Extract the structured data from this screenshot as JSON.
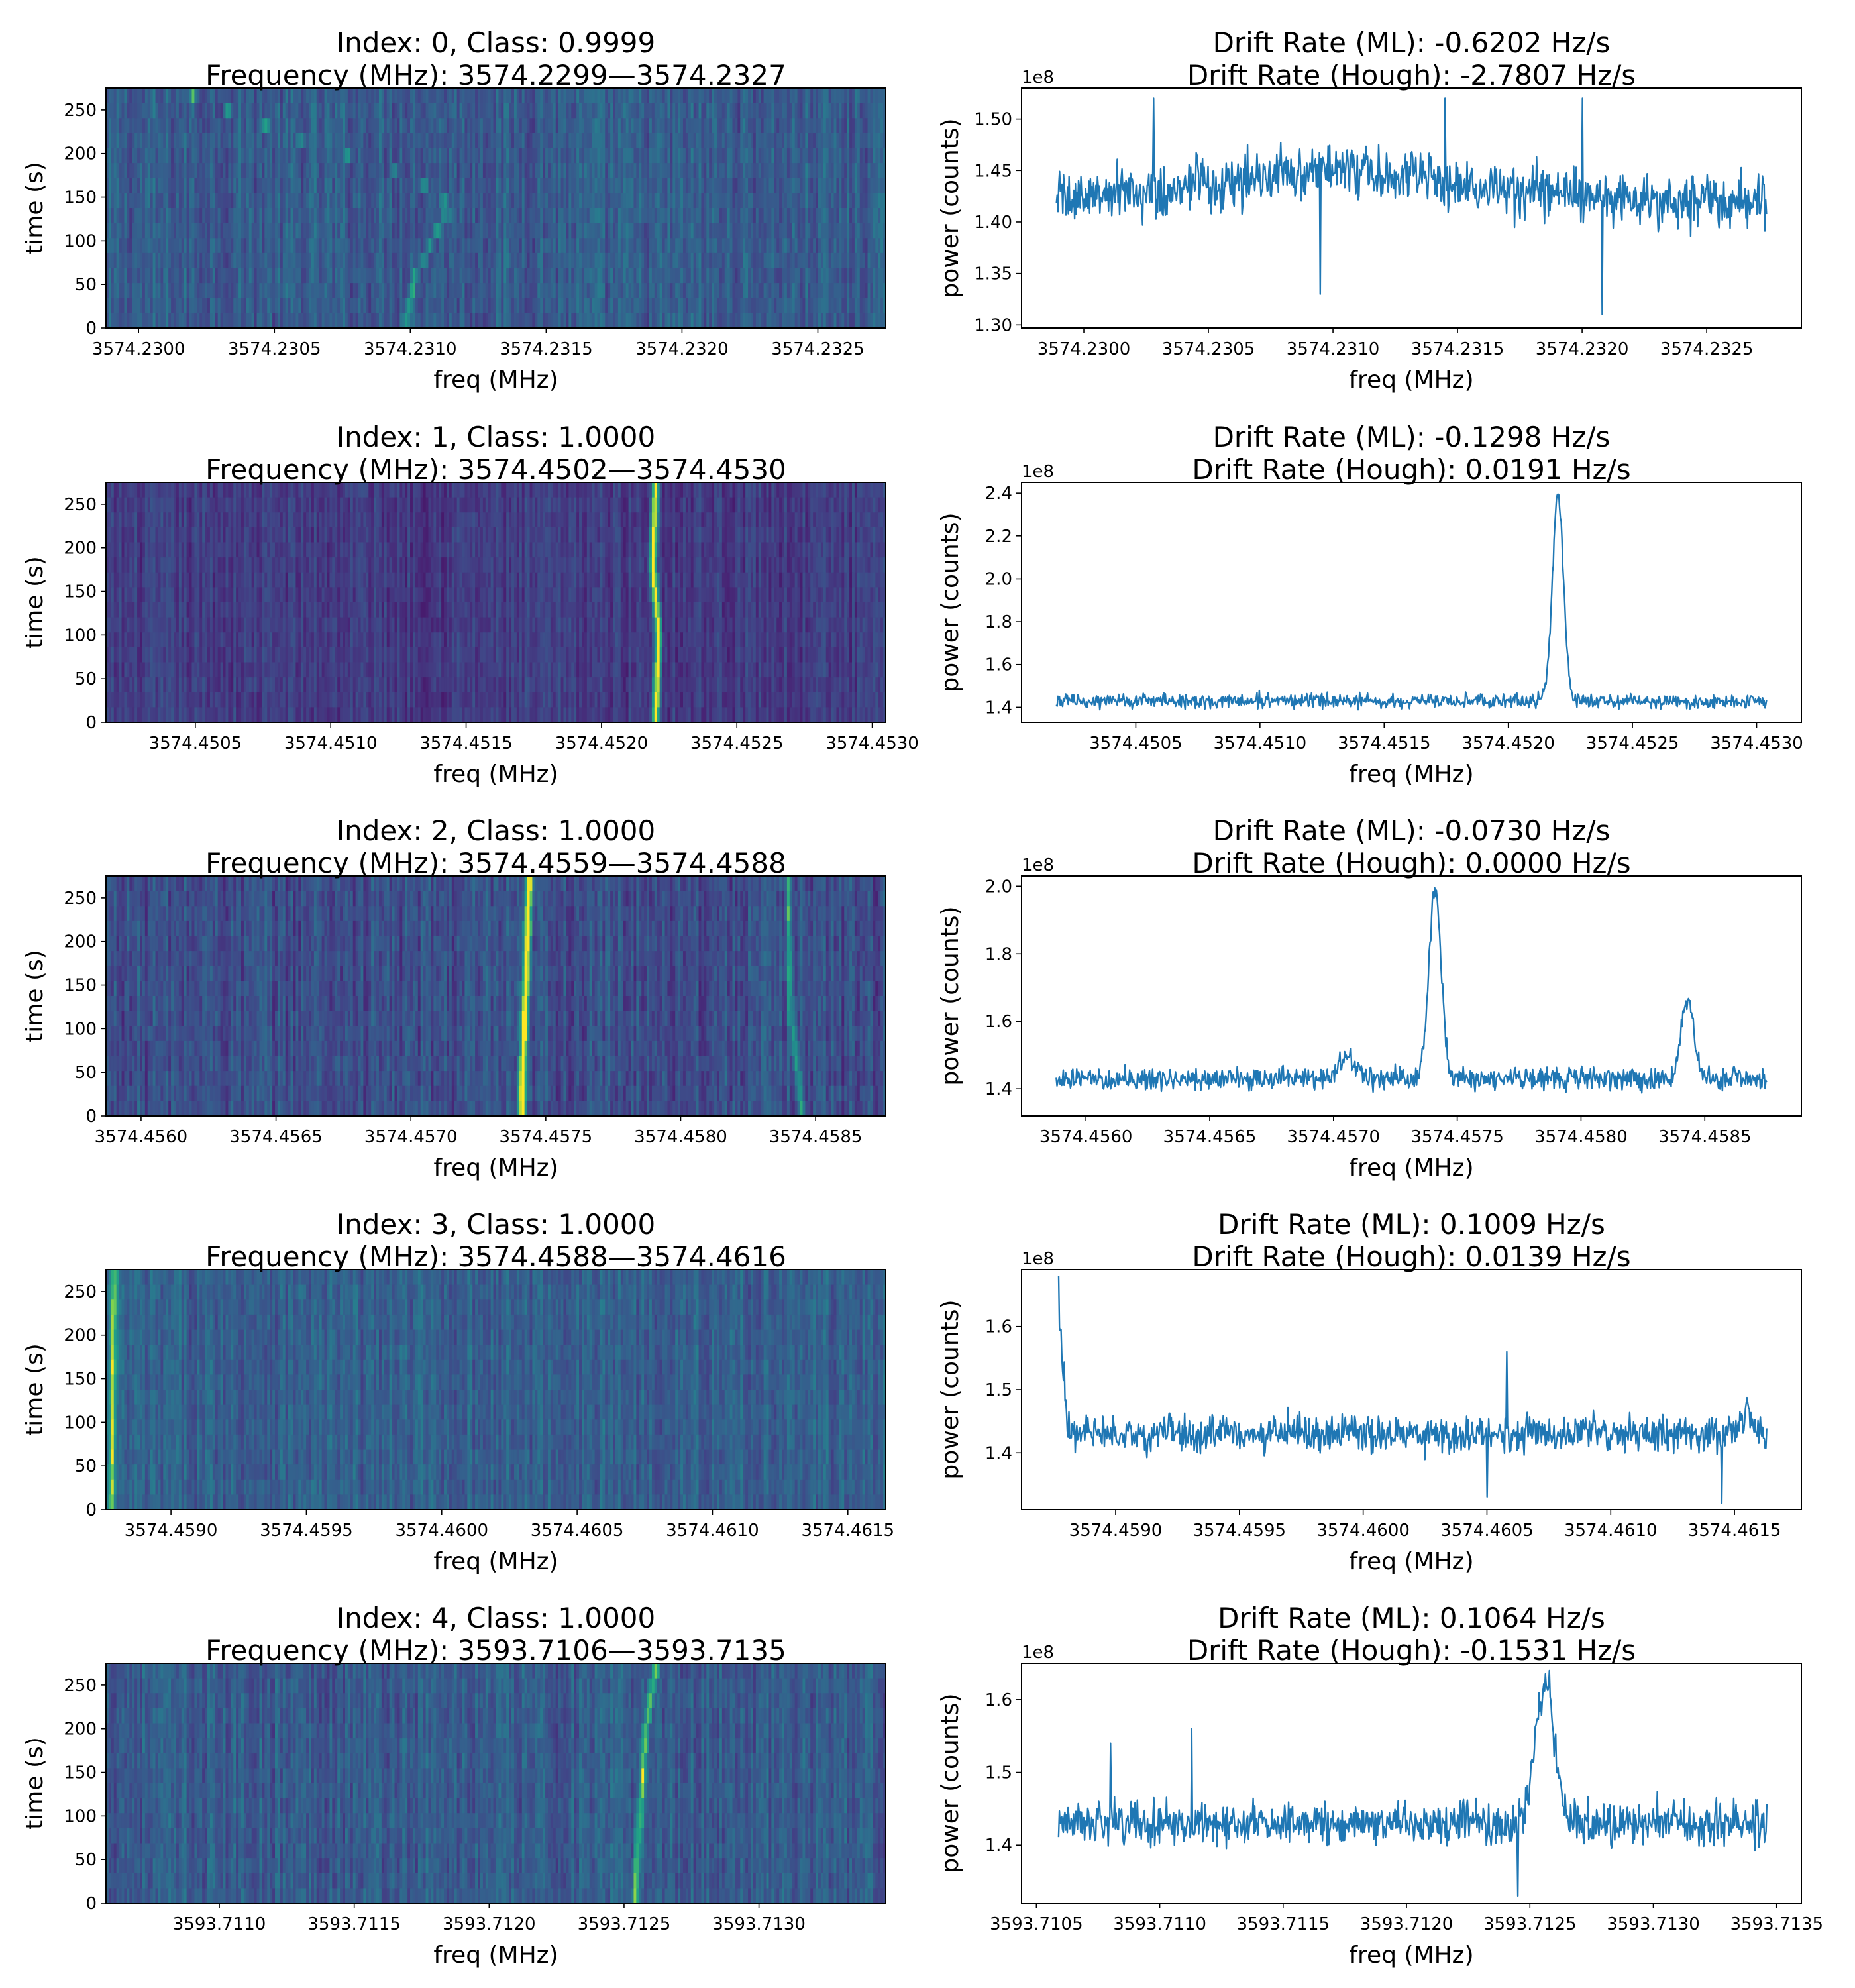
{
  "figure": {
    "line_color": "#1f77b4",
    "colormap": "viridis",
    "panels": [
      {
        "index": 0,
        "waterfall": {
          "title_line1": "Index: 0, Class: 0.9999",
          "title_line2": "Frequency (MHz): 3574.2299—3574.2327",
          "xlabel": "freq (MHz)",
          "ylabel": "time (s)",
          "x_range": [
            3574.22988,
            3574.23275
          ],
          "xticks": [
            "3574.2300",
            "3574.2305",
            "3574.2310",
            "3574.2315",
            "3574.2320",
            "3574.2325"
          ],
          "y_range": [
            0,
            275
          ],
          "yticks": [
            "0",
            "50",
            "100",
            "150",
            "200",
            "250"
          ],
          "style": "base-green",
          "signal_path": [
            [
              3574.23098,
              0
            ],
            [
              3574.23102,
              60
            ],
            [
              3574.23108,
              100
            ],
            [
              3574.23115,
              140
            ],
            [
              3574.231,
              175
            ],
            [
              3574.2306,
              215
            ],
            [
              3574.2302,
              265
            ]
          ],
          "signal_strength": 0.35
        },
        "spectrum": {
          "title_line1": "Drift Rate (ML): -0.6202 Hz/s",
          "title_line2": "Drift Rate (Hough): -2.7807 Hz/s",
          "xlabel": "freq (MHz)",
          "ylabel": "power (counts)",
          "offset_label": "1e8",
          "x_range": [
            3574.22975,
            3574.23288
          ],
          "xticks": [
            "3574.2300",
            "3574.2305",
            "3574.2310",
            "3574.2315",
            "3574.2320",
            "3574.2325"
          ],
          "y_range": [
            1.297,
            1.53
          ],
          "yticks": [
            "1.30",
            "1.35",
            "1.40",
            "1.45",
            "1.50"
          ],
          "baseline": 1.42,
          "noise": 0.035,
          "peaks": [
            [
              3574.23101,
              0.03,
              0.0005
            ]
          ],
          "extremes": [
            [
              3574.232,
              1.52
            ],
            [
              3574.23208,
              1.31
            ],
            [
              3574.23145,
              1.52
            ],
            [
              3574.23095,
              1.33
            ],
            [
              3574.23028,
              1.52
            ]
          ]
        }
      },
      {
        "index": 1,
        "waterfall": {
          "title_line1": "Index: 1, Class: 1.0000",
          "title_line2": "Frequency (MHz): 3574.4502—3574.4530",
          "xlabel": "freq (MHz)",
          "ylabel": "time (s)",
          "x_range": [
            3574.45017,
            3574.45305
          ],
          "xticks": [
            "3574.4505",
            "3574.4510",
            "3574.4515",
            "3574.4520",
            "3574.4525",
            "3574.4530"
          ],
          "y_range": [
            0,
            275
          ],
          "yticks": [
            "0",
            "50",
            "100",
            "150",
            "200",
            "250"
          ],
          "style": "base-dark",
          "signal_path": [
            [
              3574.4522,
              0
            ],
            [
              3574.45221,
              100
            ],
            [
              3574.45219,
              180
            ],
            [
              3574.4522,
              275
            ]
          ],
          "signal_strength": 0.95
        },
        "spectrum": {
          "title_line1": "Drift Rate (ML): -0.1298 Hz/s",
          "title_line2": "Drift Rate (Hough): 0.0191 Hz/s",
          "xlabel": "freq (MHz)",
          "ylabel": "power (counts)",
          "offset_label": "1e8",
          "x_range": [
            3574.45004,
            3574.45318
          ],
          "xticks": [
            "3574.4505",
            "3574.4510",
            "3574.4515",
            "3574.4520",
            "3574.4525",
            "3574.4530"
          ],
          "y_range": [
            1.33,
            2.45
          ],
          "yticks": [
            "1.4",
            "1.6",
            "1.8",
            "2.0",
            "2.2",
            "2.4"
          ],
          "baseline": 1.43,
          "noise": 0.045,
          "peaks": [
            [
              3574.4522,
              0.97,
              2.2e-05
            ]
          ],
          "extremes": []
        }
      },
      {
        "index": 2,
        "waterfall": {
          "title_line1": "Index: 2, Class: 1.0000",
          "title_line2": "Frequency (MHz): 3574.4559—3574.4588",
          "xlabel": "freq (MHz)",
          "ylabel": "time (s)",
          "x_range": [
            3574.45587,
            3574.45876
          ],
          "xticks": [
            "3574.4560",
            "3574.4565",
            "3574.4570",
            "3574.4575",
            "3574.4580",
            "3574.4585"
          ],
          "y_range": [
            0,
            275
          ],
          "yticks": [
            "0",
            "50",
            "100",
            "150",
            "200",
            "250"
          ],
          "style": "base-mid",
          "signal_path": [
            [
              3574.45741,
              0
            ],
            [
              3574.45742,
              100
            ],
            [
              3574.45744,
              275
            ]
          ],
          "signal_strength": 0.85,
          "signal2_path": [
            [
              3574.45845,
              0
            ],
            [
              3574.45841,
              110
            ],
            [
              3574.4584,
              275
            ]
          ],
          "signal2_strength": 0.45
        },
        "spectrum": {
          "title_line1": "Drift Rate (ML): -0.0730 Hz/s",
          "title_line2": "Drift Rate (Hough): 0.0000 Hz/s",
          "xlabel": "freq (MHz)",
          "ylabel": "power (counts)",
          "offset_label": "1e8",
          "x_range": [
            3574.45574,
            3574.45889
          ],
          "xticks": [
            "3574.4560",
            "3574.4565",
            "3574.4570",
            "3574.4575",
            "3574.4580",
            "3574.4585"
          ],
          "y_range": [
            1.32,
            2.03
          ],
          "yticks": [
            "1.4",
            "1.6",
            "1.8",
            "2.0"
          ],
          "baseline": 1.43,
          "noise": 0.045,
          "peaks": [
            [
              3574.45741,
              0.57,
              2.4e-05
            ],
            [
              3574.45843,
              0.24,
              2.5e-05
            ],
            [
              3574.45706,
              0.07,
              3e-05
            ]
          ],
          "extremes": []
        }
      },
      {
        "index": 3,
        "waterfall": {
          "title_line1": "Index: 3, Class: 1.0000",
          "title_line2": "Frequency (MHz): 3574.4588—3574.4616",
          "xlabel": "freq (MHz)",
          "ylabel": "time (s)",
          "x_range": [
            3574.45876,
            3574.46164
          ],
          "xticks": [
            "3574.4590",
            "3574.4595",
            "3574.4600",
            "3574.4605",
            "3574.4610",
            "3574.4615"
          ],
          "y_range": [
            0,
            275
          ],
          "yticks": [
            "0",
            "50",
            "100",
            "150",
            "200",
            "250"
          ],
          "style": "base-teal",
          "signal_path": [
            [
              3574.45878,
              0
            ],
            [
              3574.45879,
              275
            ]
          ],
          "signal_strength": 0.55
        },
        "spectrum": {
          "title_line1": "Drift Rate (ML): 0.1009 Hz/s",
          "title_line2": "Drift Rate (Hough): 0.0139 Hz/s",
          "xlabel": "freq (MHz)",
          "ylabel": "power (counts)",
          "offset_label": "1e8",
          "x_range": [
            3574.45862,
            3574.46177
          ],
          "xticks": [
            "3574.4590",
            "3574.4595",
            "3574.4600",
            "3574.4605",
            "3574.4610",
            "3574.4615"
          ],
          "y_range": [
            1.31,
            1.69
          ],
          "yticks": [
            "1.4",
            "1.5",
            "1.6"
          ],
          "baseline": 1.43,
          "noise": 0.04,
          "peaks": [
            [
              3574.45876,
              0.22,
              2.2e-05
            ],
            [
              3574.46155,
              0.04,
              2e-05
            ]
          ],
          "extremes": [
            [
              3574.45877,
              1.68
            ],
            [
              3574.46058,
              1.56
            ],
            [
              3574.46145,
              1.32
            ],
            [
              3574.4605,
              1.33
            ]
          ]
        }
      },
      {
        "index": 4,
        "waterfall": {
          "title_line1": "Index: 4, Class: 1.0000",
          "title_line2": "Frequency (MHz): 3593.7106—3593.7135",
          "xlabel": "freq (MHz)",
          "ylabel": "time (s)",
          "x_range": [
            3593.71058,
            3593.71347
          ],
          "xticks": [
            "3593.7110",
            "3593.7115",
            "3593.7120",
            "3593.7125",
            "3593.7130"
          ],
          "y_range": [
            0,
            275
          ],
          "yticks": [
            "0",
            "50",
            "100",
            "150",
            "200",
            "250"
          ],
          "style": "base-green",
          "signal_path": [
            [
              3593.71254,
              0
            ],
            [
              3593.71256,
              100
            ],
            [
              3593.71258,
              200
            ],
            [
              3593.71262,
              275
            ]
          ],
          "signal_strength": 0.55
        },
        "spectrum": {
          "title_line1": "Drift Rate (ML): 0.1064 Hz/s",
          "title_line2": "Drift Rate (Hough): -0.1531 Hz/s",
          "xlabel": "freq (MHz)",
          "ylabel": "power (counts)",
          "offset_label": "1e8",
          "x_range": [
            3593.71044,
            3593.7136
          ],
          "xticks": [
            "3593.7105",
            "3593.7110",
            "3593.7115",
            "3593.7120",
            "3593.7125",
            "3593.7130",
            "3593.7135"
          ],
          "y_range": [
            1.32,
            1.65
          ],
          "yticks": [
            "1.4",
            "1.5",
            "1.6"
          ],
          "baseline": 1.43,
          "noise": 0.04,
          "peaks": [
            [
              3593.71256,
              0.18,
              4e-05
            ]
          ],
          "extremes": [
            [
              3593.71258,
              1.64
            ],
            [
              3593.71113,
              1.56
            ],
            [
              3593.7108,
              1.54
            ],
            [
              3593.71245,
              1.33
            ]
          ]
        }
      }
    ]
  },
  "chart_data": [
    {
      "type": "heatmap",
      "title": "Index: 0, Class: 0.9999 / Frequency (MHz): 3574.2299—3574.2327",
      "xlabel": "freq (MHz)",
      "ylabel": "time (s)",
      "xlim": [
        3574.22988,
        3574.23275
      ],
      "ylim": [
        0,
        275
      ],
      "colormap": "viridis",
      "features": [
        {
          "name": "faint curved drifting signal",
          "x": [
            3574.23098,
            3574.23115,
            3574.2302
          ],
          "y": [
            0,
            140,
            265
          ]
        }
      ]
    },
    {
      "type": "line",
      "title": "Drift Rate (ML): -0.6202 Hz/s / Drift Rate (Hough): -2.7807 Hz/s",
      "xlabel": "freq (MHz)",
      "ylabel": "power (counts)",
      "y_scale_factor": "1e8",
      "xlim": [
        3574.22975,
        3574.23288
      ],
      "ylim": [
        1.297,
        1.53
      ],
      "series": [
        {
          "x": [
            3574.2299,
            3574.2305,
            3574.231,
            3574.2315,
            3574.232,
            3574.2327
          ],
          "values": [
            1.42,
            1.42,
            1.45,
            1.42,
            1.41,
            1.42
          ]
        }
      ]
    },
    {
      "type": "heatmap",
      "title": "Index: 1, Class: 1.0000 / Frequency (MHz): 3574.4502—3574.4530",
      "xlabel": "freq (MHz)",
      "ylabel": "time (s)",
      "xlim": [
        3574.45017,
        3574.45305
      ],
      "ylim": [
        0,
        275
      ],
      "colormap": "viridis",
      "features": [
        {
          "name": "bright vertical signal",
          "x": [
            3574.4522,
            3574.4522
          ],
          "y": [
            0,
            275
          ]
        }
      ]
    },
    {
      "type": "line",
      "title": "Drift Rate (ML): -0.1298 Hz/s / Drift Rate (Hough): 0.0191 Hz/s",
      "xlabel": "freq (MHz)",
      "ylabel": "power (counts)",
      "y_scale_factor": "1e8",
      "xlim": [
        3574.45004,
        3574.45318
      ],
      "ylim": [
        1.33,
        2.45
      ],
      "series": [
        {
          "x": [
            3574.4502,
            3574.451,
            3574.452,
            3574.4522,
            3574.4525,
            3574.453
          ],
          "values": [
            1.43,
            1.43,
            1.43,
            2.4,
            1.43,
            1.45
          ]
        }
      ]
    },
    {
      "type": "heatmap",
      "title": "Index: 2, Class: 1.0000 / Frequency (MHz): 3574.4559—3574.4588",
      "xlabel": "freq (MHz)",
      "ylabel": "time (s)",
      "xlim": [
        3574.45587,
        3574.45876
      ],
      "ylim": [
        0,
        275
      ],
      "colormap": "viridis",
      "features": [
        {
          "name": "bright vertical signal",
          "x": [
            3574.45741,
            3574.45744
          ],
          "y": [
            0,
            275
          ]
        },
        {
          "name": "faint vertical signal",
          "x": [
            3574.45845,
            3574.4584
          ],
          "y": [
            0,
            275
          ]
        }
      ]
    },
    {
      "type": "line",
      "title": "Drift Rate (ML): -0.0730 Hz/s / Drift Rate (Hough): 0.0000 Hz/s",
      "xlabel": "freq (MHz)",
      "ylabel": "power (counts)",
      "y_scale_factor": "1e8",
      "xlim": [
        3574.45574,
        3574.45889
      ],
      "ylim": [
        1.32,
        2.03
      ],
      "series": [
        {
          "x": [
            3574.4559,
            3574.45706,
            3574.45741,
            3574.45843,
            3574.4588
          ],
          "values": [
            1.45,
            1.52,
            2.0,
            1.68,
            1.52
          ]
        }
      ]
    },
    {
      "type": "heatmap",
      "title": "Index: 3, Class: 1.0000 / Frequency (MHz): 3574.4588—3574.4616",
      "xlabel": "freq (MHz)",
      "ylabel": "time (s)",
      "xlim": [
        3574.45876,
        3574.46164
      ],
      "ylim": [
        0,
        275
      ],
      "colormap": "viridis",
      "features": [
        {
          "name": "signal at left edge",
          "x": [
            3574.45878,
            3574.45879
          ],
          "y": [
            0,
            275
          ]
        }
      ]
    },
    {
      "type": "line",
      "title": "Drift Rate (ML): 0.1009 Hz/s / Drift Rate (Hough): 0.0139 Hz/s",
      "xlabel": "freq (MHz)",
      "ylabel": "power (counts)",
      "y_scale_factor": "1e8",
      "xlim": [
        3574.45862,
        3574.46177
      ],
      "ylim": [
        1.31,
        1.69
      ],
      "series": [
        {
          "x": [
            3574.45876,
            3574.459,
            3574.46,
            3574.461,
            3574.4616
          ],
          "values": [
            1.66,
            1.43,
            1.43,
            1.43,
            1.46
          ]
        }
      ]
    },
    {
      "type": "heatmap",
      "title": "Index: 4, Class: 1.0000 / Frequency (MHz): 3593.7106—3593.7135",
      "xlabel": "freq (MHz)",
      "ylabel": "time (s)",
      "xlim": [
        3593.71058,
        3593.71347
      ],
      "ylim": [
        0,
        275
      ],
      "colormap": "viridis",
      "features": [
        {
          "name": "vertical drifting signal",
          "x": [
            3593.71254,
            3593.71262
          ],
          "y": [
            0,
            275
          ]
        }
      ]
    },
    {
      "type": "line",
      "title": "Drift Rate (ML): 0.1064 Hz/s / Drift Rate (Hough): -0.1531 Hz/s",
      "xlabel": "freq (MHz)",
      "ylabel": "power (counts)",
      "y_scale_factor": "1e8",
      "xlim": [
        3593.71044,
        3593.7136
      ],
      "ylim": [
        1.32,
        1.65
      ],
      "series": [
        {
          "x": [
            3593.7106,
            3593.7115,
            3593.71256,
            3593.713,
            3593.7134
          ],
          "values": [
            1.43,
            1.43,
            1.62,
            1.43,
            1.45
          ]
        }
      ]
    }
  ]
}
